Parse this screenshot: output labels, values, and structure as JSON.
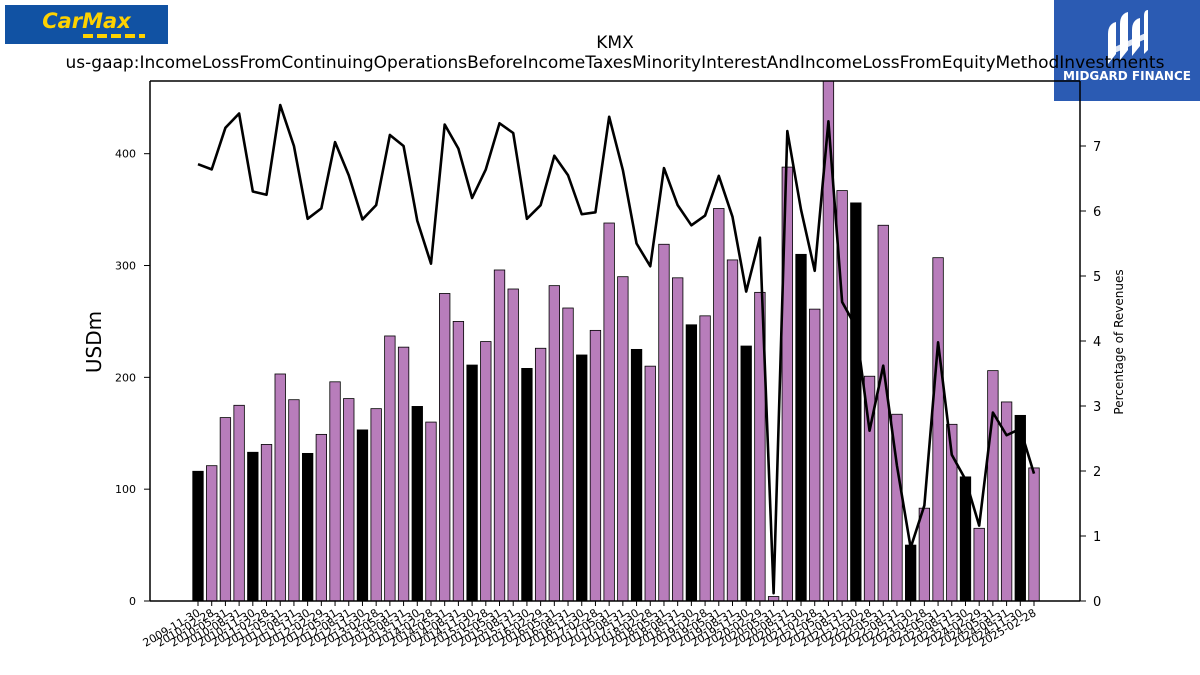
{
  "logos": {
    "left": {
      "text": "CarMax",
      "bg": "#1152a3",
      "color": "#ffd200"
    },
    "right": {
      "text": "MIDGARD FINANCE",
      "bg": "#2b5bb3",
      "color": "#ffffff"
    }
  },
  "chart_data": {
    "type": "bar",
    "title": "KMX",
    "subtitle": "us-gaap:IncomeLossFromContinuingOperationsBeforeIncomeTaxesMinorityInterestAndIncomeLossFromEquityMethodInvestments",
    "ylabel": "USDm",
    "y2label": "Percentage of Revenues",
    "ylim": [
      0,
      465
    ],
    "y2lim": [
      0,
      8
    ],
    "yticks": [
      0,
      100,
      200,
      300,
      400
    ],
    "y2ticks": [
      0,
      1,
      2,
      3,
      4,
      5,
      6,
      7
    ],
    "grid": false,
    "bar_colors": {
      "default": "#b87dbb",
      "highlight": "#000000"
    },
    "line_color": "#000000",
    "categories": [
      "2009-11-30",
      "2010-02-28",
      "2010-05-31",
      "2010-08-31",
      "2010-11-30",
      "2011-02-28",
      "2011-05-31",
      "2011-08-31",
      "2011-11-30",
      "2012-02-29",
      "2012-05-31",
      "2012-08-31",
      "2012-11-30",
      "2013-02-28",
      "2013-05-31",
      "2013-08-31",
      "2013-11-30",
      "2014-02-28",
      "2014-05-31",
      "2014-08-31",
      "2014-11-30",
      "2015-02-28",
      "2015-05-31",
      "2015-08-31",
      "2015-11-30",
      "2016-02-29",
      "2016-05-31",
      "2016-08-31",
      "2016-11-30",
      "2017-02-28",
      "2017-05-31",
      "2017-08-31",
      "2017-11-30",
      "2018-02-28",
      "2018-05-31",
      "2018-08-31",
      "2018-11-30",
      "2019-02-28",
      "2019-05-31",
      "2019-08-31",
      "2019-11-30",
      "2020-02-29",
      "2020-05-31",
      "2020-08-31",
      "2020-11-30",
      "2021-02-28",
      "2021-05-31",
      "2021-08-31",
      "2021-11-30",
      "2022-02-28",
      "2022-05-31",
      "2022-08-31",
      "2022-11-30",
      "2023-02-28",
      "2023-05-31",
      "2023-08-31",
      "2023-11-30",
      "2024-02-29",
      "2024-05-31",
      "2024-08-31",
      "2024-11-30",
      "2025-02-28"
    ],
    "series": [
      {
        "type": "bar",
        "values": [
          116,
          121,
          164,
          175,
          133,
          140,
          203,
          180,
          132,
          149,
          196,
          181,
          153,
          172,
          237,
          227,
          174,
          160,
          275,
          250,
          211,
          232,
          296,
          279,
          208,
          226,
          282,
          262,
          220,
          242,
          338,
          290,
          225,
          210,
          319,
          289,
          247,
          255,
          351,
          305,
          228,
          276,
          4,
          388,
          310,
          261,
          466,
          367,
          356,
          201,
          336,
          167,
          50,
          83,
          307,
          158,
          111,
          65,
          206,
          178,
          166,
          119
        ],
        "highlighted": [
          0,
          4,
          8,
          12,
          16,
          20,
          24,
          28,
          32,
          36,
          40,
          44,
          48,
          52,
          56,
          60
        ]
      },
      {
        "type": "line",
        "axis": "right",
        "values": [
          6.72,
          6.64,
          7.28,
          7.5,
          6.3,
          6.25,
          7.63,
          7.0,
          5.88,
          6.04,
          7.06,
          6.55,
          5.87,
          6.09,
          7.17,
          7.0,
          5.85,
          5.19,
          7.33,
          6.96,
          6.2,
          6.64,
          7.35,
          7.2,
          5.88,
          6.09,
          6.85,
          6.55,
          5.95,
          5.98,
          7.45,
          6.63,
          5.5,
          5.15,
          6.66,
          6.09,
          5.78,
          5.93,
          6.54,
          5.91,
          4.76,
          5.59,
          0.12,
          7.23,
          6.02,
          5.08,
          7.38,
          4.6,
          4.22,
          2.62,
          3.62,
          2.08,
          0.82,
          1.47,
          3.98,
          2.25,
          1.87,
          1.16,
          2.9,
          2.55,
          2.65,
          1.96
        ]
      }
    ]
  }
}
